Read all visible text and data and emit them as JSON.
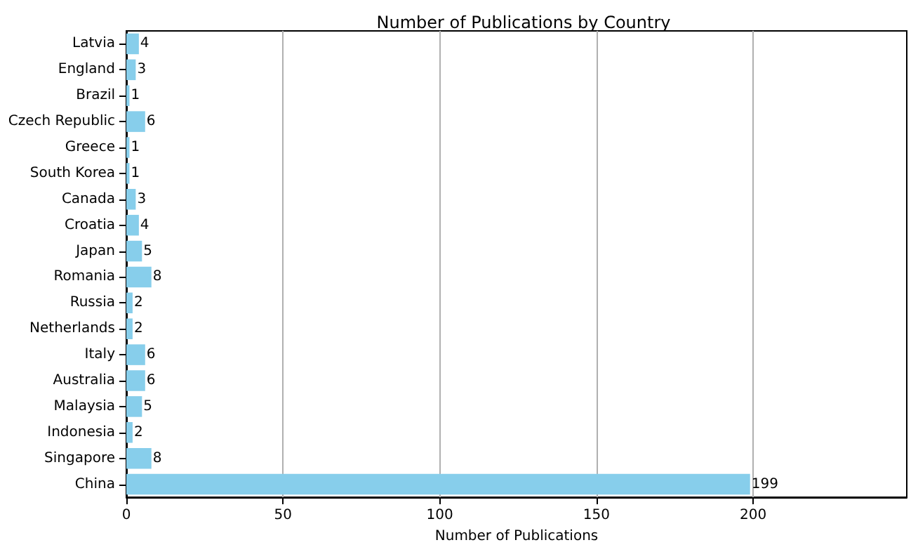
{
  "chart_data": {
    "type": "bar",
    "orientation": "horizontal",
    "title": "Number of Publications by Country",
    "xlabel": "Number of Publications",
    "categories": [
      "Latvia",
      "England",
      "Brazil",
      "Czech Republic",
      "Greece",
      "South Korea",
      "Canada",
      "Croatia",
      "Japan",
      "Romania",
      "Russia",
      "Netherlands",
      "Italy",
      "Australia",
      "Malaysia",
      "Indonesia",
      "Singapore",
      "China"
    ],
    "values": [
      4,
      3,
      1,
      6,
      1,
      1,
      3,
      4,
      5,
      8,
      2,
      2,
      6,
      6,
      5,
      2,
      8,
      199
    ],
    "color": "#87ceeb",
    "xlim": [
      0,
      249
    ],
    "xticks": [
      0,
      50,
      100,
      150,
      200
    ],
    "grid": "x",
    "data_labels": true
  }
}
